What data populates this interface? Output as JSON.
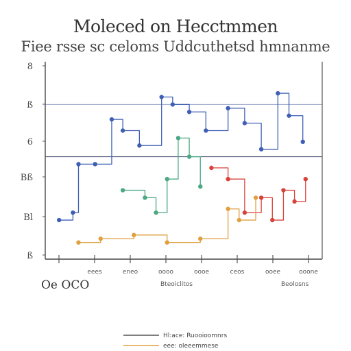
{
  "chart_data": {
    "type": "line",
    "title": "Moleced on Hecctmmen",
    "subtitle": "Fiee rsse sc celoms Uddcuthetsd hmnanme",
    "y_ticks": [
      "8",
      "ß",
      "6",
      "Bß",
      "Bl",
      "ß"
    ],
    "x_ticks": [
      "",
      "eees",
      "eneo",
      "oooo",
      "oooe",
      "ceos",
      "ooee",
      "ooone"
    ],
    "corner_label": "Oe OCO",
    "xlabel_left": "Bteoiclitos",
    "xlabel_right": "Beolosns",
    "gridlines": true,
    "legend_placement": "bottom",
    "legend": [
      {
        "label": "Hl:ace: Ruooioomnrs",
        "color": "#555555"
      },
      {
        "label": "eee: oleeemmese",
        "color": "#e0a040"
      }
    ],
    "series": [
      {
        "color": "#3f5fb5",
        "points": [
          [
            0.05,
            0.18
          ],
          [
            0.1,
            0.22
          ],
          [
            0.12,
            0.48
          ],
          [
            0.18,
            0.48
          ],
          [
            0.24,
            0.72
          ],
          [
            0.28,
            0.66
          ],
          [
            0.34,
            0.58
          ],
          [
            0.42,
            0.84
          ],
          [
            0.46,
            0.8
          ],
          [
            0.52,
            0.76
          ],
          [
            0.58,
            0.66
          ],
          [
            0.66,
            0.78
          ],
          [
            0.72,
            0.7
          ],
          [
            0.78,
            0.56
          ],
          [
            0.84,
            0.86
          ],
          [
            0.88,
            0.74
          ],
          [
            0.93,
            0.6
          ]
        ]
      },
      {
        "color": "#4aa882",
        "points": [
          [
            0.28,
            0.34
          ],
          [
            0.36,
            0.3
          ],
          [
            0.4,
            0.22
          ],
          [
            0.44,
            0.4
          ],
          [
            0.48,
            0.62
          ],
          [
            0.52,
            0.52
          ],
          [
            0.56,
            0.36
          ]
        ]
      },
      {
        "color": "#d9423a",
        "points": [
          [
            0.6,
            0.46
          ],
          [
            0.66,
            0.4
          ],
          [
            0.72,
            0.22
          ],
          [
            0.78,
            0.3
          ],
          [
            0.82,
            0.18
          ],
          [
            0.86,
            0.34
          ],
          [
            0.9,
            0.28
          ],
          [
            0.94,
            0.4
          ]
        ]
      },
      {
        "color": "#e0a040",
        "points": [
          [
            0.12,
            0.06
          ],
          [
            0.2,
            0.08
          ],
          [
            0.32,
            0.1
          ],
          [
            0.44,
            0.06
          ],
          [
            0.56,
            0.08
          ],
          [
            0.66,
            0.24
          ],
          [
            0.7,
            0.18
          ],
          [
            0.76,
            0.3
          ]
        ]
      }
    ]
  }
}
